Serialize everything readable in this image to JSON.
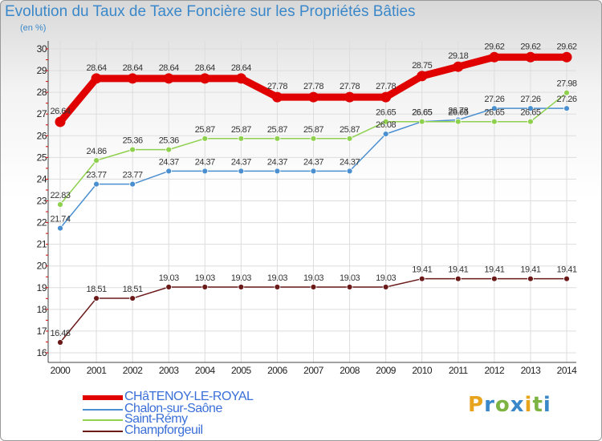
{
  "title": "Evolution du Taux de Taxe Foncière sur les Propriétés Bâties",
  "unit": "(en %)",
  "logo": {
    "text": "Proxiti",
    "letters": [
      "P",
      "r",
      "o",
      "x",
      "i",
      "t",
      "i"
    ],
    "colors": [
      "#e8a41c",
      "#3a88c9",
      "#7cb342",
      "#3a88c9",
      "#e8a41c",
      "#7cb342",
      "#3a88c9"
    ]
  },
  "chart_data": {
    "type": "line",
    "title": "Evolution du Taux de Taxe Foncière sur les Propriétés Bâties",
    "ylabel": "(en %)",
    "ylim": [
      16,
      30
    ],
    "yticks": [
      16,
      17,
      18,
      19,
      20,
      21,
      22,
      23,
      24,
      25,
      26,
      27,
      28,
      29,
      30
    ],
    "categories": [
      "2000",
      "2001",
      "2002",
      "2003",
      "2004",
      "2005",
      "2006",
      "2007",
      "2008",
      "2009",
      "2010",
      "2011",
      "2012",
      "2013",
      "2014"
    ],
    "series": [
      {
        "name": "CHâTENOY-LE-ROYAL",
        "color": "#e00000",
        "values": [
          26.64,
          28.64,
          28.64,
          28.64,
          28.64,
          28.64,
          27.78,
          27.78,
          27.78,
          27.78,
          28.75,
          29.18,
          29.62,
          29.62,
          29.62
        ],
        "labels": [
          "26.64",
          "28.64",
          "28.64",
          "28.64",
          "28.64",
          "28.64",
          "27.78",
          "27.78",
          "27.78",
          "27.78",
          "28.75",
          "29.18",
          "29.62",
          "29.62",
          "29.62"
        ]
      },
      {
        "name": "Chalon-sur-Saône",
        "color": "#4a8fd0",
        "values": [
          21.74,
          23.77,
          23.77,
          24.37,
          24.37,
          24.37,
          24.37,
          24.37,
          24.37,
          26.08,
          26.65,
          26.73,
          27.26,
          27.26,
          27.26
        ],
        "labels": [
          "21.74",
          "23.77",
          "23.77",
          "24.37",
          "24.37",
          "24.37",
          "24.37",
          "24.37",
          "24.37",
          "26.08",
          "26.65",
          "26.73",
          "27.26",
          "27.26",
          "27.26"
        ]
      },
      {
        "name": "Saint-Rémy",
        "color": "#8fd14f",
        "values": [
          22.83,
          24.86,
          25.36,
          25.36,
          25.87,
          25.87,
          25.87,
          25.87,
          25.87,
          26.65,
          26.65,
          26.65,
          26.65,
          26.65,
          27.98
        ],
        "labels": [
          "22.83",
          "24.86",
          "25.36",
          "25.36",
          "25.87",
          "25.87",
          "25.87",
          "25.87",
          "25.87",
          "26.65",
          "26.65",
          "26.65",
          "26.65",
          "26.65",
          "27.98"
        ]
      },
      {
        "name": "Champforgeuil",
        "color": "#6b1a1a",
        "values": [
          16.48,
          18.51,
          18.51,
          19.03,
          19.03,
          19.03,
          19.03,
          19.03,
          19.03,
          19.03,
          19.41,
          19.41,
          19.41,
          19.41,
          19.41
        ],
        "labels": [
          "16.48",
          "18.51",
          "18.51",
          "19.03",
          "19.03",
          "19.03",
          "19.03",
          "19.03",
          "19.03",
          "19.03",
          "19.41",
          "19.41",
          "19.41",
          "19.41",
          "19.41"
        ]
      }
    ],
    "grid": true,
    "legend": "bottom-left"
  }
}
